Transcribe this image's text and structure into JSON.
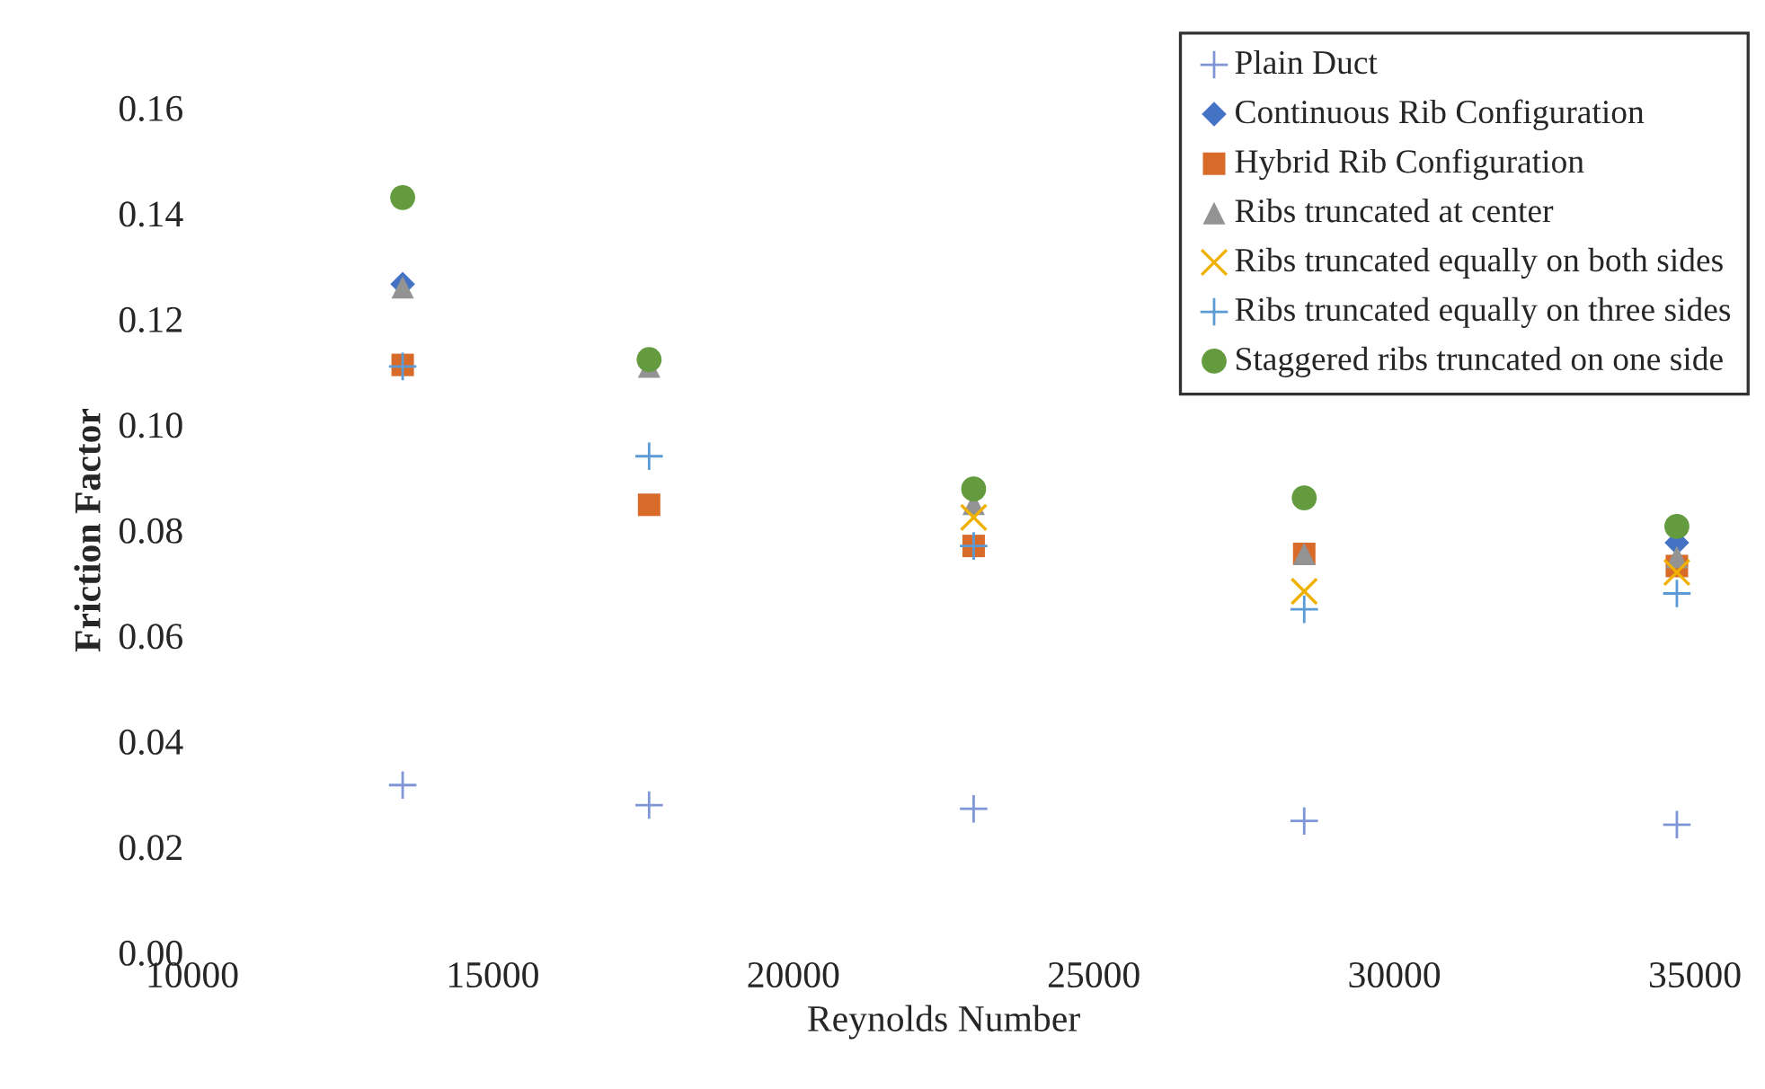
{
  "chart_data": {
    "type": "scatter",
    "xlabel": "Reynolds Number",
    "ylabel": "Friction Factor",
    "x": [
      13500,
      17600,
      23000,
      28500,
      34700
    ],
    "series": [
      {
        "name": "Plain Duct",
        "color": "#7f96d6",
        "marker": "cross",
        "values": [
          0.0317,
          0.0279,
          0.0272,
          0.0249,
          0.0242
        ]
      },
      {
        "name": "Continuous Rib Configuration",
        "color": "#4472c4",
        "marker": "diamond",
        "values": [
          0.1266,
          null,
          null,
          null,
          0.0776
        ]
      },
      {
        "name": "Hybrid Rib Configuration",
        "color": "#d86b2a",
        "marker": "square",
        "values": [
          0.1113,
          0.0848,
          0.077,
          0.0755,
          0.0732
        ]
      },
      {
        "name": "Ribs truncated at center",
        "color": "#939393",
        "marker": "triangle",
        "values": [
          0.126,
          0.111,
          0.085,
          0.0755,
          0.0749
        ]
      },
      {
        "name": "Ribs truncated equally on both sides",
        "color": "#f0b000",
        "marker": "x",
        "values": [
          null,
          null,
          0.0824,
          0.0684,
          0.072
        ]
      },
      {
        "name": "Ribs truncated equally on three sides",
        "color": "#5b9bd5",
        "marker": "cross",
        "values": [
          0.111,
          0.094,
          0.077,
          0.065,
          0.068
        ]
      },
      {
        "name": "Staggered ribs truncated on one side",
        "color": "#639b3e",
        "marker": "circle",
        "values": [
          0.143,
          0.1123,
          0.0878,
          0.0861,
          0.0807
        ]
      }
    ],
    "xlim": [
      10000,
      35000
    ],
    "xticks": [
      10000,
      15000,
      20000,
      25000,
      30000,
      35000
    ],
    "ylim": [
      0,
      0.16
    ],
    "yticks": [
      {
        "value": 0,
        "label": "0.00"
      },
      {
        "value": 0.02,
        "label": "0.02"
      },
      {
        "value": 0.04,
        "label": "0.04"
      },
      {
        "value": 0.06,
        "label": "0.06"
      },
      {
        "value": 0.08,
        "label": "0.08"
      },
      {
        "value": 0.1,
        "label": "0.10"
      },
      {
        "value": 0.12,
        "label": "0.12"
      },
      {
        "value": 0.14,
        "label": "0.14"
      },
      {
        "value": 0.16,
        "label": "0.16"
      }
    ],
    "grid": false,
    "legend": "top right"
  }
}
